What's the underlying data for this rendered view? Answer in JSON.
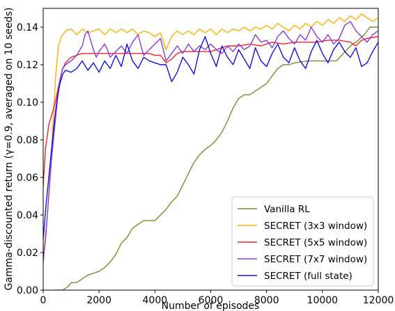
{
  "chart_data": {
    "type": "line",
    "xlabel": "Number of episodes",
    "ylabel": "Gamma-discounted return (γ=0.9, averaged on 10 seeds)",
    "xlim": [
      0,
      12000
    ],
    "ylim": [
      0,
      0.15
    ],
    "xticks": [
      0,
      2000,
      4000,
      6000,
      8000,
      10000,
      12000
    ],
    "xtick_labels": [
      "0",
      "2000",
      "4000",
      "6000",
      "8000",
      "10000",
      "12000"
    ],
    "yticks": [
      0,
      0.02,
      0.04,
      0.06,
      0.08,
      0.1,
      0.12,
      0.14
    ],
    "ytick_labels": [
      "0.00",
      "0.02",
      "0.04",
      "0.06",
      "0.08",
      "0.10",
      "0.12",
      "0.14"
    ],
    "grid": false,
    "legend_position": "bottom-right",
    "series": [
      {
        "name": "Vanilla RL",
        "color": "#808a2e",
        "points": [
          [
            0,
            -0.002
          ],
          [
            400,
            0
          ],
          [
            700,
            0
          ],
          [
            800,
            0.001
          ],
          [
            900,
            0.002
          ],
          [
            1000,
            0.004
          ],
          [
            1200,
            0.004
          ],
          [
            1300,
            0.005
          ],
          [
            1400,
            0.006
          ],
          [
            1600,
            0.008
          ],
          [
            1800,
            0.009
          ],
          [
            2000,
            0.01
          ],
          [
            2200,
            0.012
          ],
          [
            2400,
            0.015
          ],
          [
            2600,
            0.019
          ],
          [
            2800,
            0.025
          ],
          [
            3000,
            0.028
          ],
          [
            3200,
            0.033
          ],
          [
            3400,
            0.035
          ],
          [
            3600,
            0.037
          ],
          [
            3800,
            0.037
          ],
          [
            4000,
            0.037
          ],
          [
            4200,
            0.04
          ],
          [
            4400,
            0.043
          ],
          [
            4600,
            0.047
          ],
          [
            4800,
            0.05
          ],
          [
            5000,
            0.056
          ],
          [
            5200,
            0.062
          ],
          [
            5400,
            0.068
          ],
          [
            5600,
            0.072
          ],
          [
            5800,
            0.075
          ],
          [
            6000,
            0.077
          ],
          [
            6200,
            0.08
          ],
          [
            6400,
            0.084
          ],
          [
            6600,
            0.09
          ],
          [
            6800,
            0.097
          ],
          [
            7000,
            0.102
          ],
          [
            7200,
            0.104
          ],
          [
            7400,
            0.104
          ],
          [
            7600,
            0.106
          ],
          [
            7800,
            0.108
          ],
          [
            8000,
            0.11
          ],
          [
            8200,
            0.114
          ],
          [
            8400,
            0.118
          ],
          [
            8600,
            0.12
          ],
          [
            8800,
            0.12
          ],
          [
            9000,
            0.121
          ],
          [
            9500,
            0.122
          ],
          [
            10000,
            0.122
          ],
          [
            10500,
            0.122
          ],
          [
            11000,
            0.13
          ],
          [
            11200,
            0.132
          ],
          [
            11500,
            0.136
          ],
          [
            11700,
            0.14
          ],
          [
            12000,
            0.14
          ]
        ]
      },
      {
        "name": "SECRET (3x3 window)",
        "color": "#ffb000",
        "points": [
          [
            0,
            0.018
          ],
          [
            150,
            0.04
          ],
          [
            300,
            0.075
          ],
          [
            450,
            0.115
          ],
          [
            550,
            0.13
          ],
          [
            650,
            0.135
          ],
          [
            800,
            0.138
          ],
          [
            1000,
            0.139
          ],
          [
            1200,
            0.136
          ],
          [
            1400,
            0.139
          ],
          [
            1600,
            0.137
          ],
          [
            1800,
            0.138
          ],
          [
            2000,
            0.139
          ],
          [
            2200,
            0.136
          ],
          [
            2400,
            0.139
          ],
          [
            2600,
            0.137
          ],
          [
            2800,
            0.139
          ],
          [
            3000,
            0.137
          ],
          [
            3200,
            0.139
          ],
          [
            3400,
            0.136
          ],
          [
            3600,
            0.138
          ],
          [
            3800,
            0.137
          ],
          [
            4000,
            0.135
          ],
          [
            4200,
            0.137
          ],
          [
            4400,
            0.128
          ],
          [
            4600,
            0.135
          ],
          [
            4800,
            0.138
          ],
          [
            5000,
            0.136
          ],
          [
            5200,
            0.138
          ],
          [
            5400,
            0.136
          ],
          [
            5600,
            0.139
          ],
          [
            5800,
            0.137
          ],
          [
            6000,
            0.139
          ],
          [
            6200,
            0.136
          ],
          [
            6400,
            0.139
          ],
          [
            6600,
            0.137
          ],
          [
            6800,
            0.139
          ],
          [
            7000,
            0.138
          ],
          [
            7200,
            0.14
          ],
          [
            7400,
            0.138
          ],
          [
            7600,
            0.14
          ],
          [
            7800,
            0.139
          ],
          [
            8000,
            0.141
          ],
          [
            8200,
            0.139
          ],
          [
            8400,
            0.142
          ],
          [
            8600,
            0.14
          ],
          [
            8800,
            0.138
          ],
          [
            9000,
            0.141
          ],
          [
            9200,
            0.139
          ],
          [
            9400,
            0.142
          ],
          [
            9600,
            0.14
          ],
          [
            9800,
            0.143
          ],
          [
            10000,
            0.141
          ],
          [
            10200,
            0.144
          ],
          [
            10400,
            0.142
          ],
          [
            10600,
            0.145
          ],
          [
            10800,
            0.143
          ],
          [
            11000,
            0.146
          ],
          [
            11200,
            0.144
          ],
          [
            11400,
            0.147
          ],
          [
            11600,
            0.145
          ],
          [
            11800,
            0.143
          ],
          [
            12000,
            0.145
          ]
        ]
      },
      {
        "name": "SECRET (5x5 window)",
        "color": "#ff2020",
        "points": [
          [
            0,
            0.055
          ],
          [
            80,
            0.075
          ],
          [
            200,
            0.088
          ],
          [
            300,
            0.093
          ],
          [
            400,
            0.098
          ],
          [
            500,
            0.105
          ],
          [
            600,
            0.112
          ],
          [
            700,
            0.118
          ],
          [
            800,
            0.121
          ],
          [
            1000,
            0.124
          ],
          [
            1200,
            0.125
          ],
          [
            1400,
            0.126
          ],
          [
            1600,
            0.126
          ],
          [
            2000,
            0.126
          ],
          [
            2500,
            0.126
          ],
          [
            3000,
            0.126
          ],
          [
            3500,
            0.126
          ],
          [
            3800,
            0.126
          ],
          [
            4000,
            0.125
          ],
          [
            4200,
            0.125
          ],
          [
            4400,
            0.121
          ],
          [
            4600,
            0.123
          ],
          [
            4800,
            0.126
          ],
          [
            5000,
            0.127
          ],
          [
            5500,
            0.127
          ],
          [
            6000,
            0.127
          ],
          [
            6200,
            0.128
          ],
          [
            6400,
            0.129
          ],
          [
            6600,
            0.13
          ],
          [
            7000,
            0.13
          ],
          [
            7400,
            0.131
          ],
          [
            7800,
            0.13
          ],
          [
            8200,
            0.132
          ],
          [
            8600,
            0.131
          ],
          [
            9000,
            0.132
          ],
          [
            9400,
            0.132
          ],
          [
            9800,
            0.132
          ],
          [
            10200,
            0.133
          ],
          [
            10600,
            0.133
          ],
          [
            11000,
            0.132
          ],
          [
            11200,
            0.13
          ],
          [
            11400,
            0.133
          ],
          [
            11600,
            0.134
          ],
          [
            12000,
            0.135
          ]
        ]
      },
      {
        "name": "SECRET (7x7 window)",
        "color": "#8a3ae0",
        "points": [
          [
            0,
            0.015
          ],
          [
            100,
            0.03
          ],
          [
            200,
            0.05
          ],
          [
            300,
            0.07
          ],
          [
            400,
            0.085
          ],
          [
            500,
            0.1
          ],
          [
            600,
            0.112
          ],
          [
            700,
            0.118
          ],
          [
            800,
            0.12
          ],
          [
            1000,
            0.122
          ],
          [
            1200,
            0.125
          ],
          [
            1400,
            0.13
          ],
          [
            1500,
            0.136
          ],
          [
            1600,
            0.138
          ],
          [
            1700,
            0.133
          ],
          [
            1800,
            0.128
          ],
          [
            1900,
            0.124
          ],
          [
            2000,
            0.127
          ],
          [
            2200,
            0.131
          ],
          [
            2300,
            0.128
          ],
          [
            2400,
            0.124
          ],
          [
            2600,
            0.127
          ],
          [
            2800,
            0.13
          ],
          [
            3000,
            0.126
          ],
          [
            3200,
            0.132
          ],
          [
            3400,
            0.136
          ],
          [
            3500,
            0.13
          ],
          [
            3600,
            0.125
          ],
          [
            3800,
            0.128
          ],
          [
            4000,
            0.131
          ],
          [
            4200,
            0.134
          ],
          [
            4300,
            0.128
          ],
          [
            4400,
            0.122
          ],
          [
            4600,
            0.126
          ],
          [
            4800,
            0.13
          ],
          [
            5000,
            0.126
          ],
          [
            5200,
            0.131
          ],
          [
            5400,
            0.127
          ],
          [
            5600,
            0.13
          ],
          [
            5800,
            0.128
          ],
          [
            6000,
            0.131
          ],
          [
            6200,
            0.128
          ],
          [
            6400,
            0.126
          ],
          [
            6600,
            0.13
          ],
          [
            6800,
            0.127
          ],
          [
            7000,
            0.131
          ],
          [
            7200,
            0.128
          ],
          [
            7400,
            0.13
          ],
          [
            7600,
            0.136
          ],
          [
            7800,
            0.132
          ],
          [
            8000,
            0.133
          ],
          [
            8200,
            0.129
          ],
          [
            8400,
            0.135
          ],
          [
            8600,
            0.138
          ],
          [
            8800,
            0.134
          ],
          [
            9000,
            0.131
          ],
          [
            9200,
            0.136
          ],
          [
            9400,
            0.133
          ],
          [
            9600,
            0.14
          ],
          [
            9800,
            0.135
          ],
          [
            10000,
            0.132
          ],
          [
            10200,
            0.136
          ],
          [
            10400,
            0.131
          ],
          [
            10600,
            0.134
          ],
          [
            10800,
            0.141
          ],
          [
            11000,
            0.143
          ],
          [
            11200,
            0.138
          ],
          [
            11400,
            0.135
          ],
          [
            11600,
            0.132
          ],
          [
            11800,
            0.136
          ],
          [
            12000,
            0.138
          ]
        ]
      },
      {
        "name": "SECRET (full state)",
        "color": "#1010e0",
        "points": [
          [
            0,
            0.027
          ],
          [
            100,
            0.045
          ],
          [
            200,
            0.06
          ],
          [
            300,
            0.075
          ],
          [
            400,
            0.09
          ],
          [
            500,
            0.102
          ],
          [
            600,
            0.11
          ],
          [
            700,
            0.115
          ],
          [
            800,
            0.117
          ],
          [
            1000,
            0.116
          ],
          [
            1200,
            0.118
          ],
          [
            1400,
            0.122
          ],
          [
            1600,
            0.117
          ],
          [
            1800,
            0.121
          ],
          [
            2000,
            0.116
          ],
          [
            2200,
            0.122
          ],
          [
            2400,
            0.118
          ],
          [
            2600,
            0.125
          ],
          [
            2800,
            0.119
          ],
          [
            3000,
            0.131
          ],
          [
            3200,
            0.122
          ],
          [
            3400,
            0.118
          ],
          [
            3600,
            0.124
          ],
          [
            3800,
            0.122
          ],
          [
            4000,
            0.121
          ],
          [
            4200,
            0.12
          ],
          [
            4400,
            0.12
          ],
          [
            4600,
            0.111
          ],
          [
            4800,
            0.116
          ],
          [
            5000,
            0.124
          ],
          [
            5200,
            0.12
          ],
          [
            5400,
            0.115
          ],
          [
            5600,
            0.128
          ],
          [
            5800,
            0.135
          ],
          [
            6000,
            0.126
          ],
          [
            6200,
            0.119
          ],
          [
            6400,
            0.13
          ],
          [
            6600,
            0.124
          ],
          [
            6800,
            0.12
          ],
          [
            7000,
            0.128
          ],
          [
            7200,
            0.123
          ],
          [
            7400,
            0.118
          ],
          [
            7600,
            0.129
          ],
          [
            7800,
            0.122
          ],
          [
            8000,
            0.119
          ],
          [
            8200,
            0.126
          ],
          [
            8400,
            0.131
          ],
          [
            8600,
            0.124
          ],
          [
            8800,
            0.121
          ],
          [
            9000,
            0.129
          ],
          [
            9200,
            0.122
          ],
          [
            9400,
            0.118
          ],
          [
            9600,
            0.127
          ],
          [
            9800,
            0.133
          ],
          [
            10000,
            0.126
          ],
          [
            10200,
            0.121
          ],
          [
            10400,
            0.128
          ],
          [
            10600,
            0.132
          ],
          [
            10800,
            0.127
          ],
          [
            11000,
            0.124
          ],
          [
            11200,
            0.129
          ],
          [
            11400,
            0.119
          ],
          [
            11600,
            0.121
          ],
          [
            11800,
            0.127
          ],
          [
            12000,
            0.132
          ]
        ]
      }
    ]
  }
}
